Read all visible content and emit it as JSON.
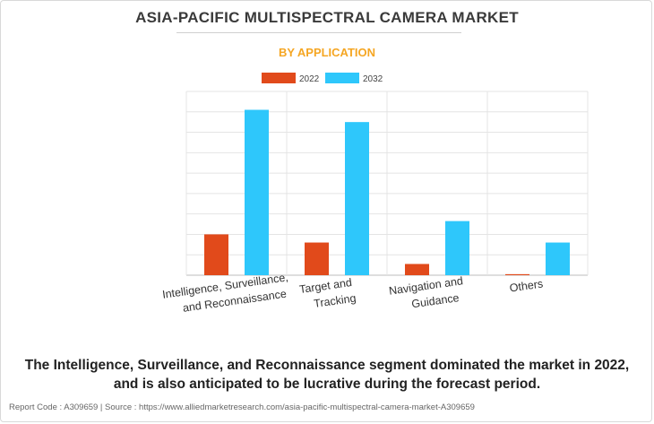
{
  "header": {
    "title": "ASIA-PACIFIC MULTISPECTRAL CAMERA MARKET",
    "subtitle": "BY APPLICATION"
  },
  "chart_data": {
    "type": "bar",
    "categories": [
      [
        "Intelligence, Surveillance,",
        "and Reconnaissance"
      ],
      [
        "Target and",
        "Tracking"
      ],
      [
        "Navigation and",
        "Guidance"
      ],
      [
        "Others"
      ]
    ],
    "series": [
      {
        "name": "2022",
        "color": "#e14a1b",
        "values": [
          20,
          16,
          5.5,
          0.5
        ]
      },
      {
        "name": "2032",
        "color": "#2ec7fb",
        "values": [
          81,
          75,
          26.5,
          16
        ]
      }
    ],
    "ylim": [
      0,
      90
    ],
    "y_grid_step": 10,
    "y_tick_labels_shown": false,
    "grid": true,
    "legend_position": "top-center",
    "xlabel": "",
    "ylabel": ""
  },
  "caption": {
    "line1": "The Intelligence, Surveillance, and Reconnaissance segment dominated the market in 2022,",
    "line2": "and is also anticipated to be lucrative during the forecast period."
  },
  "footer": {
    "text": "Report Code : A309659  |  Source : https://www.alliedmarketresearch.com/asia-pacific-multispectral-camera-market-A309659"
  }
}
